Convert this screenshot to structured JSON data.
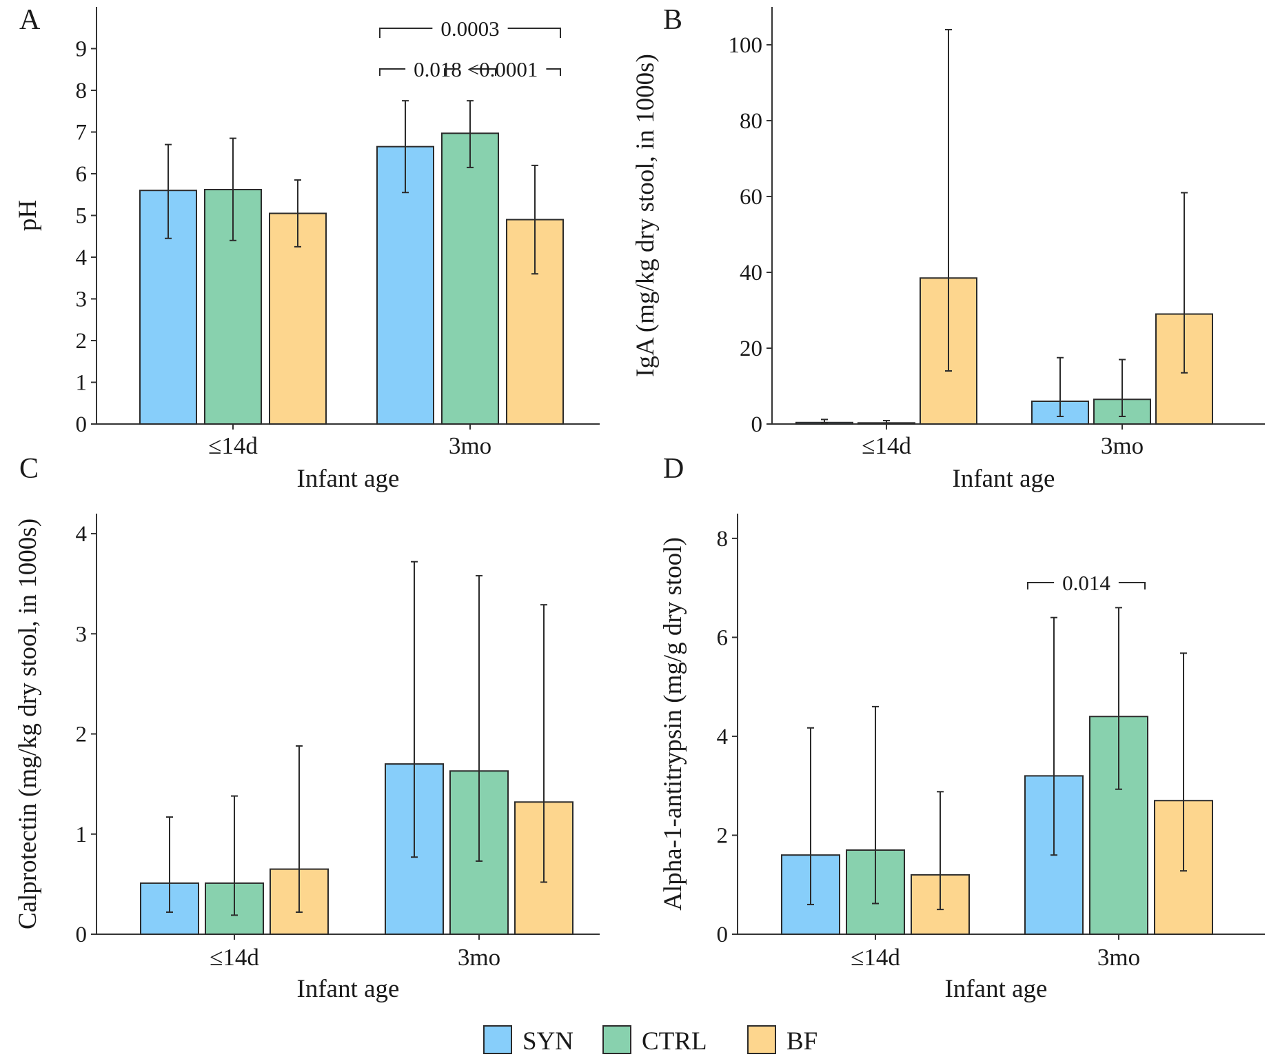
{
  "colors": {
    "SYN": "#87cefa",
    "CTRL": "#88d1ae",
    "BF": "#fdd68e"
  },
  "legend": [
    {
      "key": "SYN",
      "label": "SYN"
    },
    {
      "key": "CTRL",
      "label": "CTRL"
    },
    {
      "key": "BF",
      "label": "BF"
    }
  ],
  "chart_data": [
    {
      "panel": "A",
      "type": "bar",
      "xlabel": "Infant age",
      "ylabel": "pH",
      "categories": [
        "≤14d",
        "3mo"
      ],
      "ylim": [
        0,
        10
      ],
      "yticks": [
        0,
        1,
        2,
        3,
        4,
        5,
        6,
        7,
        8,
        9
      ],
      "series": [
        {
          "name": "SYN",
          "values": [
            5.6,
            6.65
          ],
          "err_low": [
            4.45,
            5.55
          ],
          "err_high": [
            6.7,
            7.75
          ]
        },
        {
          "name": "CTRL",
          "values": [
            5.62,
            6.97
          ],
          "err_low": [
            4.4,
            6.15
          ],
          "err_high": [
            6.85,
            7.75
          ]
        },
        {
          "name": "BF",
          "values": [
            5.05,
            4.9
          ],
          "err_low": [
            4.25,
            3.6
          ],
          "err_high": [
            5.85,
            6.2
          ]
        }
      ],
      "comparisons": [
        {
          "category": 1,
          "from": "SYN",
          "to": "BF",
          "label": "0.0003",
          "level": 2
        },
        {
          "category": 1,
          "from": "SYN",
          "to": "CTRL",
          "label": "0.018",
          "level": 1
        },
        {
          "category": 1,
          "from": "CTRL",
          "to": "BF",
          "label": "<0.0001",
          "level": 1
        }
      ]
    },
    {
      "panel": "B",
      "type": "bar",
      "xlabel": "Infant age",
      "ylabel": "IgA (mg/kg dry stool, in 1000s)",
      "categories": [
        "≤14d",
        "3mo"
      ],
      "ylim": [
        0,
        110
      ],
      "yticks": [
        0,
        20,
        40,
        60,
        80,
        100
      ],
      "series": [
        {
          "name": "SYN",
          "values": [
            0.4,
            6.0
          ],
          "err_low": [
            0.1,
            2.0
          ],
          "err_high": [
            1.2,
            17.5
          ]
        },
        {
          "name": "CTRL",
          "values": [
            0.3,
            6.5
          ],
          "err_low": [
            0.1,
            2.0
          ],
          "err_high": [
            0.9,
            17.0
          ]
        },
        {
          "name": "BF",
          "values": [
            38.5,
            29.0
          ],
          "err_low": [
            14.0,
            13.5
          ],
          "err_high": [
            104.0,
            61.0
          ]
        }
      ],
      "comparisons": []
    },
    {
      "panel": "C",
      "type": "bar",
      "xlabel": "Infant age",
      "ylabel": "Calprotectin (mg/kg dry stool, in 1000s)",
      "categories": [
        "≤14d",
        "3mo"
      ],
      "ylim": [
        0,
        4.2
      ],
      "yticks": [
        0,
        1,
        2,
        3,
        4
      ],
      "series": [
        {
          "name": "SYN",
          "values": [
            0.51,
            1.7
          ],
          "err_low": [
            0.22,
            0.77
          ],
          "err_high": [
            1.17,
            3.72
          ]
        },
        {
          "name": "CTRL",
          "values": [
            0.51,
            1.63
          ],
          "err_low": [
            0.19,
            0.73
          ],
          "err_high": [
            1.38,
            3.58
          ]
        },
        {
          "name": "BF",
          "values": [
            0.65,
            1.32
          ],
          "err_low": [
            0.22,
            0.52
          ],
          "err_high": [
            1.88,
            3.29
          ]
        }
      ],
      "comparisons": []
    },
    {
      "panel": "D",
      "type": "bar",
      "xlabel": "Infant age",
      "ylabel": "Alpha-1-antitrypsin (mg/g dry stool)",
      "categories": [
        "≤14d",
        "3mo"
      ],
      "ylim": [
        0,
        8.5
      ],
      "yticks": [
        0,
        2,
        4,
        6,
        8
      ],
      "series": [
        {
          "name": "SYN",
          "values": [
            1.6,
            3.2
          ],
          "err_low": [
            0.6,
            1.6
          ],
          "err_high": [
            4.17,
            6.4
          ]
        },
        {
          "name": "CTRL",
          "values": [
            1.7,
            4.4
          ],
          "err_low": [
            0.62,
            2.93
          ],
          "err_high": [
            4.6,
            6.6
          ]
        },
        {
          "name": "BF",
          "values": [
            1.2,
            2.7
          ],
          "err_low": [
            0.5,
            1.28
          ],
          "err_high": [
            2.88,
            5.68
          ]
        }
      ],
      "comparisons": [
        {
          "category": 1,
          "from": "SYN",
          "to": "CTRL",
          "label": "0.014",
          "level": 1
        }
      ]
    }
  ]
}
